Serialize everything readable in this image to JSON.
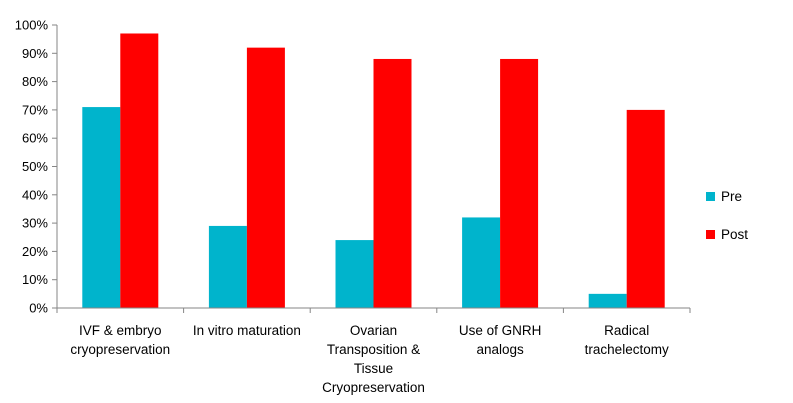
{
  "chart_data": {
    "type": "bar",
    "title": "",
    "xlabel": "",
    "ylabel": "",
    "ylim": [
      0,
      1
    ],
    "y_ticks": [
      "0%",
      "10%",
      "20%",
      "30%",
      "40%",
      "50%",
      "60%",
      "70%",
      "80%",
      "90%",
      "100%"
    ],
    "categories": [
      [
        "IVF & embryo",
        "cryopreservation"
      ],
      [
        "In vitro maturation"
      ],
      [
        "Ovarian",
        "Transposition &",
        "Tissue",
        "Cryopreservation"
      ],
      [
        "Use of GNRH",
        "analogs"
      ],
      [
        "Radical",
        "trachelectomy"
      ]
    ],
    "series": [
      {
        "name": "Pre",
        "color": "#00B4CC",
        "values": [
          0.71,
          0.29,
          0.24,
          0.32,
          0.05
        ]
      },
      {
        "name": "Post",
        "color": "#FF0000",
        "values": [
          0.97,
          0.92,
          0.88,
          0.88,
          0.7
        ]
      }
    ],
    "grid": false,
    "legend_position": "right"
  }
}
